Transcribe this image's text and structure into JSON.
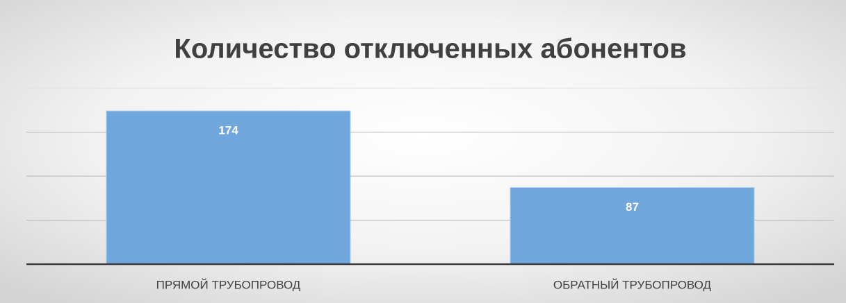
{
  "chart_data": {
    "type": "bar",
    "title": "Количество отключенных абонентов",
    "categories": [
      "ПРЯМОЙ ТРУБОПРОВОД",
      "ОБРАТНЫЙ ТРУБОПРОВОД"
    ],
    "values": [
      174,
      87
    ],
    "color": "#6fa7dc",
    "ylim": [
      0,
      200
    ],
    "yticks": [
      0,
      50,
      100,
      150,
      200
    ],
    "grid": true
  }
}
